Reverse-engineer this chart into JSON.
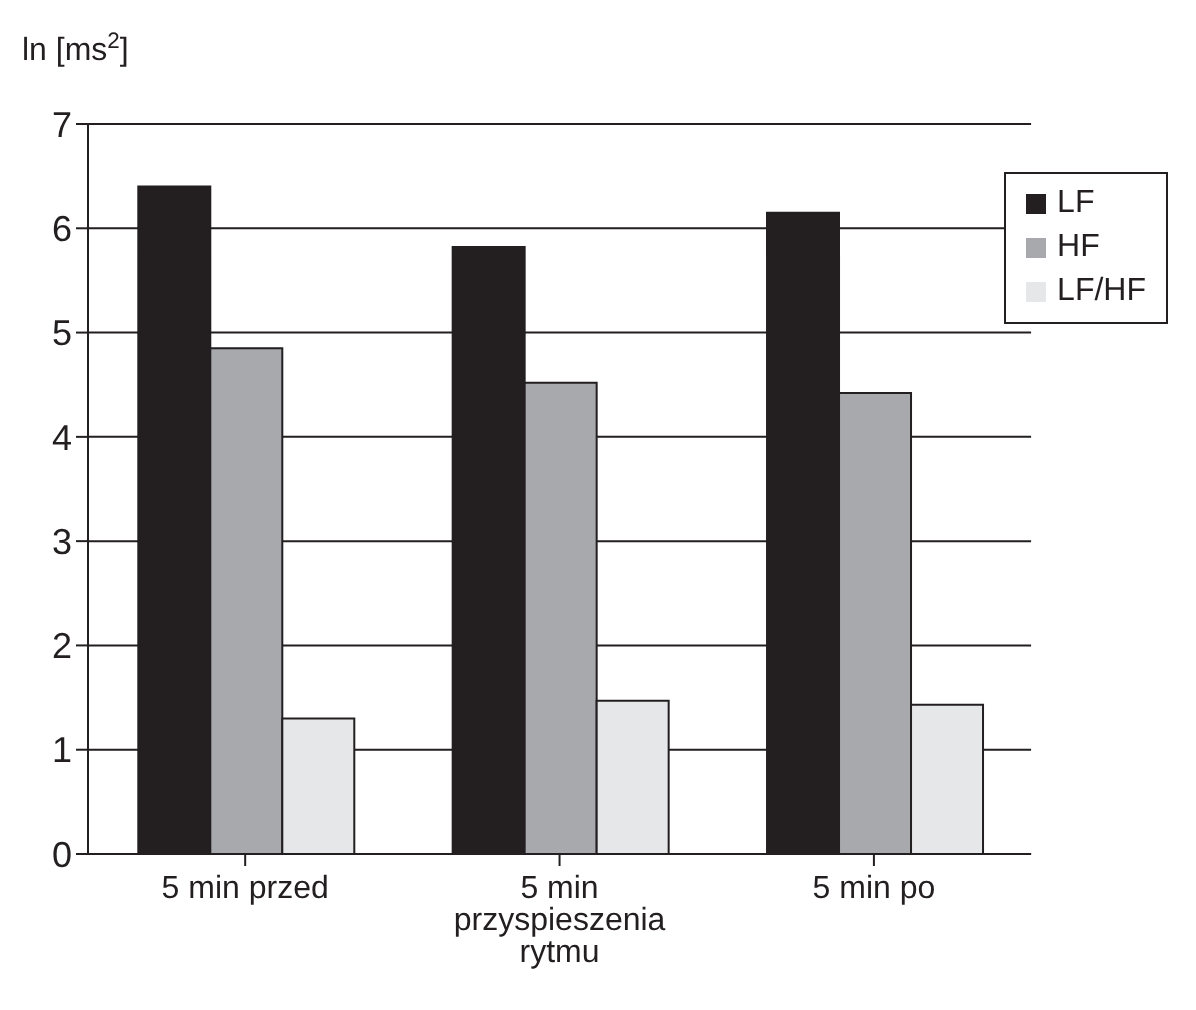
{
  "chart_data": {
    "type": "bar",
    "ylabel": "ln [ms$^{2}$]",
    "categories": [
      "5 min przed",
      "5 min przyspieszenia rytmu",
      "5 min po"
    ],
    "series": [
      {
        "name": "LF",
        "color": "#231f20",
        "values": [
          6.4,
          5.82,
          6.15
        ]
      },
      {
        "name": "HF",
        "color": "#a7a9ac",
        "values": [
          4.85,
          4.52,
          4.42
        ]
      },
      {
        "name": "LF/HF",
        "color": "#e6e7e8",
        "values": [
          1.3,
          1.47,
          1.43
        ]
      }
    ],
    "ylim": [
      0,
      7
    ],
    "yticks": [
      0,
      1,
      2,
      3,
      4,
      5,
      6,
      7
    ],
    "grid": "y",
    "legend": "top right"
  }
}
